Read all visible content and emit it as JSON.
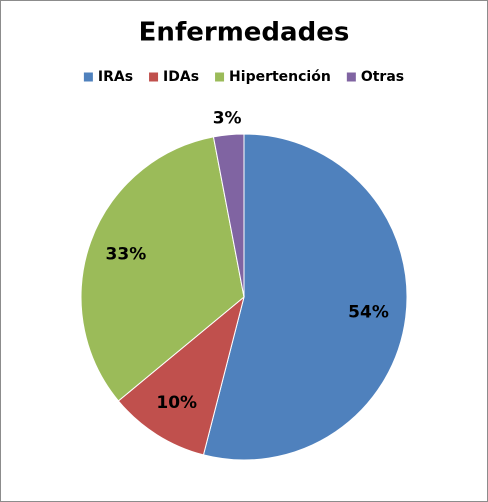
{
  "chart_data": {
    "type": "pie",
    "title": "Enfermedades",
    "categories": [
      "IRAs",
      "IDAs",
      "Hipertención",
      "Otras"
    ],
    "values": [
      54,
      10,
      33,
      3
    ],
    "value_labels": [
      "54%",
      "10%",
      "33%",
      "3%"
    ],
    "colors": [
      "#4f81bd",
      "#c0504d",
      "#9bbb59",
      "#8064a2"
    ],
    "legend": "top"
  }
}
